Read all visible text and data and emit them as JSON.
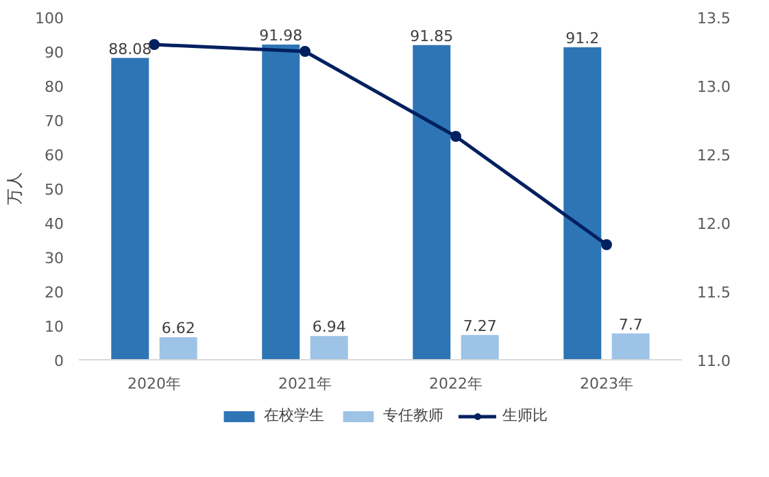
{
  "chart_data": {
    "type": "bar",
    "categories": [
      "2020年",
      "2021年",
      "2022年",
      "2023年"
    ],
    "ylabel": "万人",
    "ylim": [
      0,
      100
    ],
    "yticks": [
      0,
      10,
      20,
      30,
      40,
      50,
      60,
      70,
      80,
      90,
      100
    ],
    "y2lim": [
      11,
      13.5
    ],
    "y2ticks": [
      {
        "value": 11,
        "label": "11.0"
      },
      {
        "value": 11.5,
        "label": "11.5"
      },
      {
        "value": 12,
        "label": "12.0"
      },
      {
        "value": 12.5,
        "label": "12.5"
      },
      {
        "value": 13,
        "label": "13.0"
      },
      {
        "value": 13.5,
        "label": "13.5"
      }
    ],
    "grid": false,
    "legend": "bottom",
    "series": [
      {
        "name": "在校学生",
        "color": "#2e75b6",
        "values": [
          88.08,
          91.98,
          91.85,
          91.2
        ],
        "value_labels": [
          "88.08",
          "91.98",
          "91.85",
          "91.2"
        ]
      },
      {
        "name": "专任教师",
        "color": "#9dc3e6",
        "values": [
          6.62,
          6.94,
          7.27,
          7.7
        ],
        "value_labels": [
          "6.62",
          "6.94",
          "7.27",
          "7.7"
        ]
      },
      {
        "name": "生师比",
        "type": "line",
        "axis": "y2",
        "color": "#002060",
        "marker": "circle",
        "values": [
          13.3,
          13.25,
          12.63,
          11.84
        ]
      }
    ]
  }
}
